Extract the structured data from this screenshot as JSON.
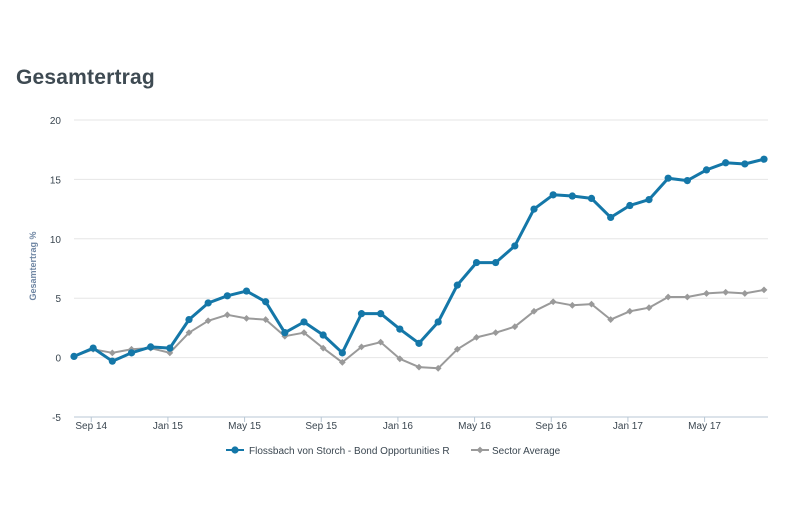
{
  "title": "Gesamtertrag",
  "chart_data": {
    "type": "line",
    "ylabel": "Gesamtertrag %",
    "xlabel": "",
    "ylim": [
      -5,
      20
    ],
    "y_ticks": [
      "-5",
      "0",
      "5",
      "10",
      "15",
      "20"
    ],
    "y_tick_values": [
      -5,
      0,
      5,
      10,
      15,
      20
    ],
    "x_ticks": [
      {
        "label": "Sep 14",
        "x": 0.9
      },
      {
        "label": "Jan 15",
        "x": 4.9
      },
      {
        "label": "May 15",
        "x": 8.9
      },
      {
        "label": "Sep 15",
        "x": 12.9
      },
      {
        "label": "Jan 16",
        "x": 16.9
      },
      {
        "label": "May 16",
        "x": 20.9
      },
      {
        "label": "Sep 16",
        "x": 24.9
      },
      {
        "label": "Jan 17",
        "x": 28.9
      },
      {
        "label": "May 17",
        "x": 32.9
      }
    ],
    "series": [
      {
        "name": "Flossbach von Storch - Bond Opportunities R",
        "color": "#1477a8",
        "marker": "circle",
        "values": [
          0.1,
          0.8,
          -0.3,
          0.4,
          0.9,
          0.8,
          3.2,
          4.6,
          5.2,
          5.6,
          4.7,
          2.1,
          3.0,
          1.9,
          0.4,
          3.7,
          3.7,
          2.4,
          1.2,
          3.0,
          6.1,
          8.0,
          8.0,
          9.4,
          12.5,
          13.7,
          13.6,
          13.4,
          11.8,
          12.8,
          13.3,
          15.1,
          14.9,
          15.8,
          16.4,
          16.3,
          16.7
        ]
      },
      {
        "name": "Sector Average",
        "color": "#9a9a9a",
        "marker": "diamond",
        "values": [
          0.1,
          0.7,
          0.4,
          0.7,
          0.8,
          0.4,
          2.1,
          3.1,
          3.6,
          3.3,
          3.2,
          1.8,
          2.1,
          0.8,
          -0.4,
          0.9,
          1.3,
          -0.1,
          -0.8,
          -0.9,
          0.7,
          1.7,
          2.1,
          2.6,
          3.9,
          4.7,
          4.4,
          4.5,
          3.2,
          3.9,
          4.2,
          5.1,
          5.1,
          5.4,
          5.5,
          5.4,
          5.7
        ]
      }
    ]
  }
}
